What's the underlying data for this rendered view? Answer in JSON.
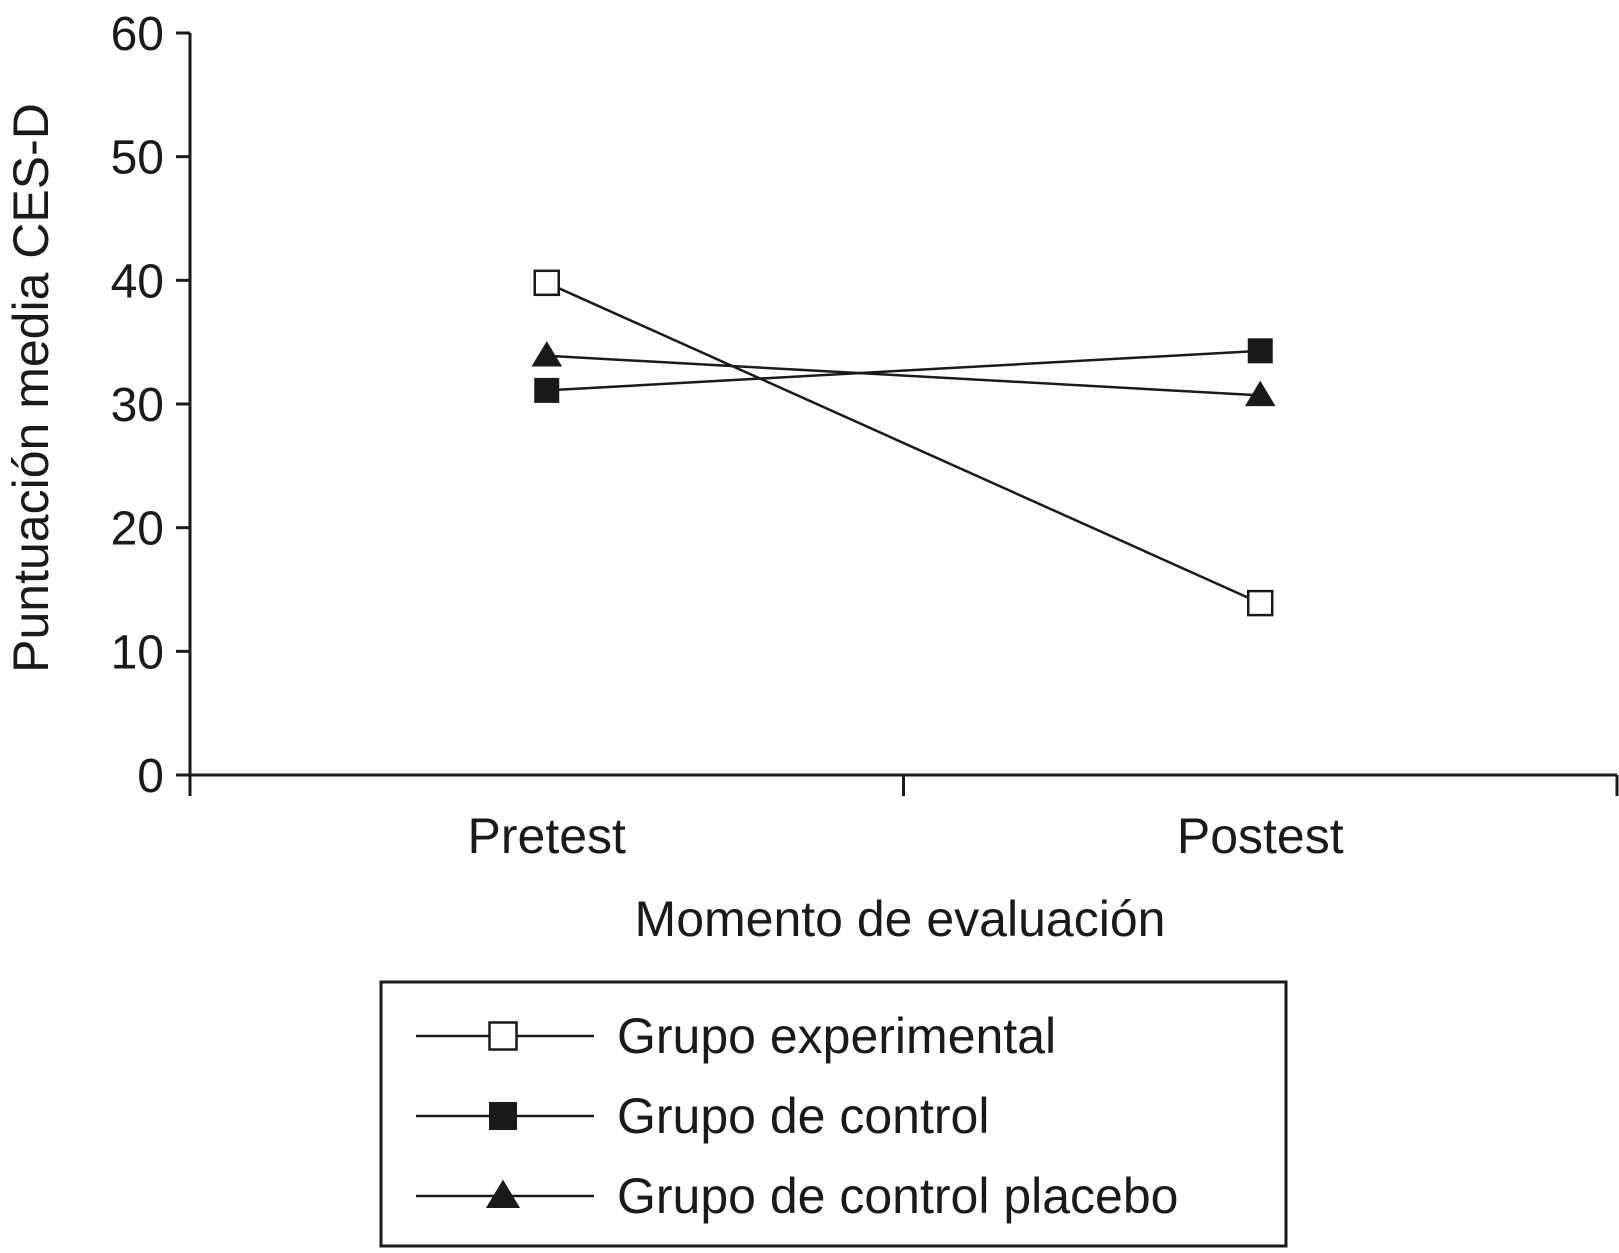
{
  "chart_data": {
    "type": "line",
    "categories": [
      "Pretest",
      "Postest"
    ],
    "series": [
      {
        "name": "Grupo experimental",
        "values": [
          39.8,
          13.9
        ],
        "marker": "square-open"
      },
      {
        "name": "Grupo de control",
        "values": [
          31.1,
          34.3
        ],
        "marker": "square-filled"
      },
      {
        "name": "Grupo de control placebo",
        "values": [
          33.9,
          30.7
        ],
        "marker": "triangle-filled"
      }
    ],
    "title": "",
    "xlabel": "Momento de evaluación",
    "ylabel": "Puntuación media CES-D",
    "ylim": [
      0,
      60
    ],
    "yticks": [
      "0",
      "10",
      "20",
      "30",
      "40",
      "50",
      "60"
    ],
    "grid": false,
    "legend_position": "bottom",
    "colors": {
      "line": "#1a1a1a",
      "background": "#ffffff"
    }
  }
}
